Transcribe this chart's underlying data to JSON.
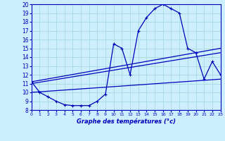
{
  "xlabel": "Graphe des températures (°c)",
  "background_color": "#cceeff",
  "grid_color": "#aadddd",
  "line_color": "#0000bb",
  "ylim": [
    8,
    20
  ],
  "xlim": [
    0,
    23
  ],
  "yticks": [
    8,
    9,
    10,
    11,
    12,
    13,
    14,
    15,
    16,
    17,
    18,
    19,
    20
  ],
  "xticks": [
    0,
    1,
    2,
    3,
    4,
    5,
    6,
    7,
    8,
    9,
    10,
    11,
    12,
    13,
    14,
    15,
    16,
    17,
    18,
    19,
    20,
    21,
    22,
    23
  ],
  "main_x": [
    0,
    1,
    2,
    3,
    4,
    5,
    6,
    7,
    8,
    9,
    10,
    11,
    12,
    13,
    14,
    15,
    16,
    17,
    18,
    19,
    20,
    21,
    22,
    23
  ],
  "main_y": [
    11.2,
    10.0,
    9.5,
    9.0,
    8.6,
    8.5,
    8.5,
    8.5,
    9.0,
    9.8,
    15.5,
    15.0,
    12.0,
    17.0,
    18.5,
    19.5,
    20.0,
    19.5,
    19.0,
    15.0,
    14.5,
    11.5,
    13.5,
    12.0
  ],
  "trend1_x": [
    0,
    23
  ],
  "trend1_y": [
    11.2,
    15.0
  ],
  "trend2_x": [
    0,
    23
  ],
  "trend2_y": [
    11.0,
    14.5
  ],
  "trend3_x": [
    0,
    23
  ],
  "trend3_y": [
    10.0,
    11.5
  ]
}
